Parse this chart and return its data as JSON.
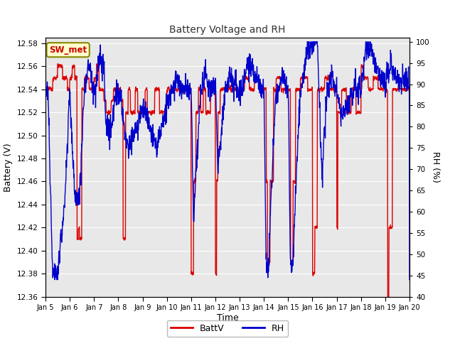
{
  "title": "Battery Voltage and RH",
  "xlabel": "Time",
  "ylabel_left": "Battery (V)",
  "ylabel_right": "RH (%)",
  "annotation": "SW_met",
  "ylim_left": [
    12.36,
    12.585
  ],
  "ylim_right": [
    40,
    101
  ],
  "yticks_left": [
    12.36,
    12.38,
    12.4,
    12.42,
    12.44,
    12.46,
    12.48,
    12.5,
    12.52,
    12.54,
    12.56,
    12.58
  ],
  "yticks_right": [
    40,
    45,
    50,
    55,
    60,
    65,
    70,
    75,
    80,
    85,
    90,
    95,
    100
  ],
  "xtick_labels": [
    "Jan 5",
    "Jan 6",
    "Jan 7",
    "Jan 8",
    "Jan 9",
    "Jan 10",
    "Jan 11",
    "Jan 12",
    "Jan 13",
    "Jan 14",
    "Jan 15",
    "Jan 16",
    "Jan 17",
    "Jan 18",
    "Jan 19",
    "Jan 20"
  ],
  "bg_color": "#ffffff",
  "plot_bg_color": "#e8e8e8",
  "grid_color": "#ffffff",
  "title_color": "#333333",
  "batt_color": "#dd0000",
  "rh_color": "#0000cc",
  "legend_batt_label": "BattV",
  "legend_rh_label": "RH",
  "annotation_bg": "#ffffcc",
  "annotation_border": "#888800",
  "annotation_text_color": "#cc0000"
}
